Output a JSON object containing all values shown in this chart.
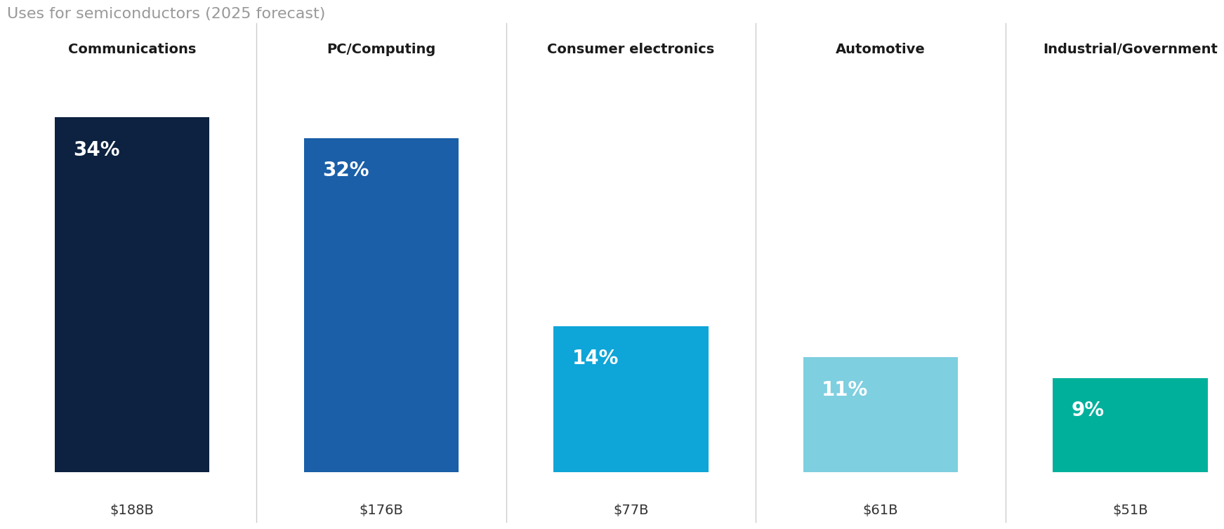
{
  "title": "Uses for semiconductors (2025 forecast)",
  "categories": [
    "Communications",
    "PC/Computing",
    "Consumer electronics",
    "Automotive",
    "Industrial/Government"
  ],
  "percentages": [
    34,
    32,
    14,
    11,
    9
  ],
  "values": [
    "$188B",
    "$176B",
    "$77B",
    "$61B",
    "$51B"
  ],
  "bar_colors": [
    "#0d2240",
    "#1a5fa8",
    "#0ea5d8",
    "#7ecfe0",
    "#00b09b"
  ],
  "pct_labels": [
    "34%",
    "32%",
    "14%",
    "11%",
    "9%"
  ],
  "background_color": "#ffffff",
  "title_color": "#999999",
  "category_label_color": "#1a1a1a",
  "value_label_color": "#333333",
  "pct_text_color": "#ffffff",
  "title_fontsize": 16,
  "category_fontsize": 14,
  "pct_fontsize": 20,
  "value_fontsize": 14,
  "divider_color": "#cccccc",
  "max_pct": 34
}
